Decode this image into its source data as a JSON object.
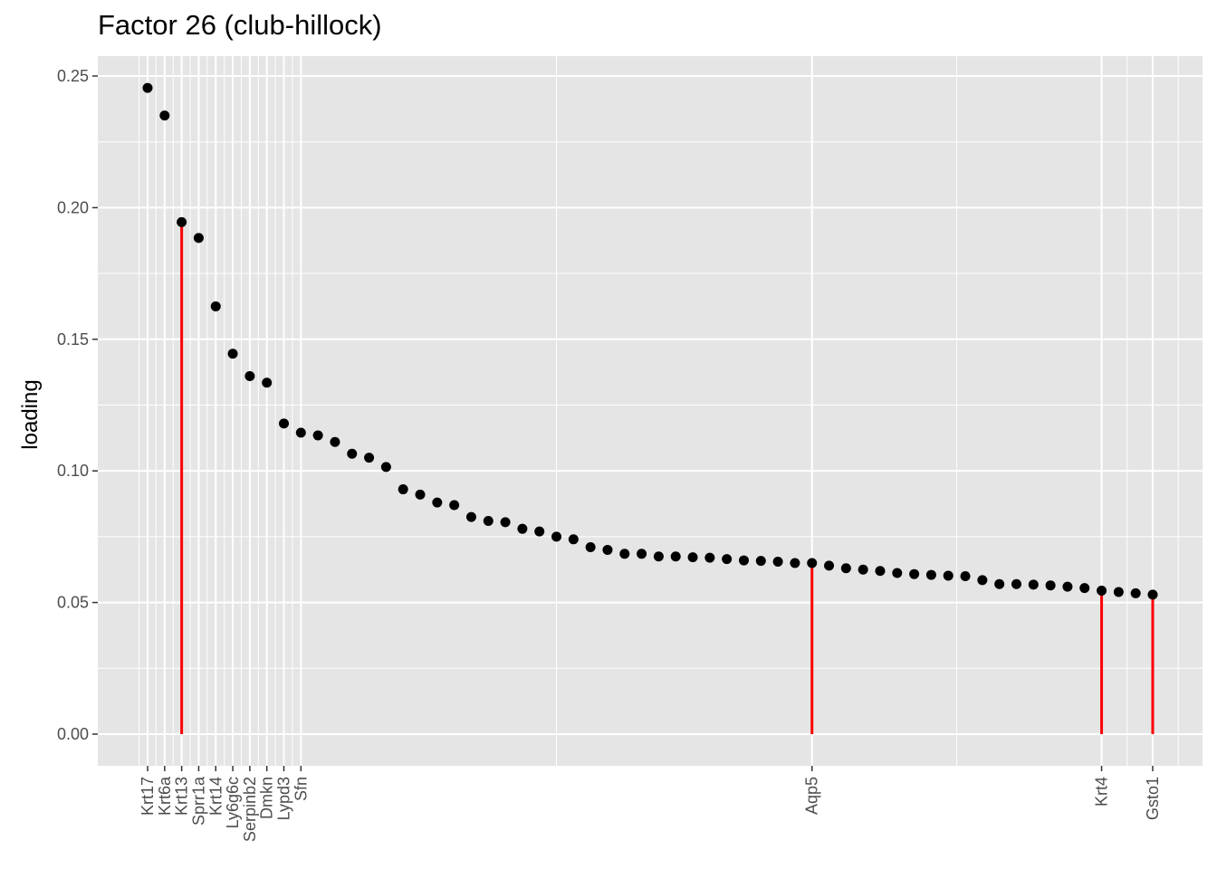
{
  "chart_data": {
    "type": "scatter",
    "title": "Factor 26 (club-hillock)",
    "xlabel": "",
    "ylabel": "loading",
    "ylim": [
      -0.012,
      0.26
    ],
    "yticks": [
      0.0,
      0.05,
      0.1,
      0.15,
      0.2,
      0.25
    ],
    "ytick_labels": [
      "0.00",
      "0.05",
      "0.10",
      "0.15",
      "0.20",
      "0.25"
    ],
    "grid": true,
    "point_color": "#000000",
    "segment_color": "#FF0000",
    "panel_background": "#E5E5E5",
    "gridline_color": "#FFFFFF",
    "n_points": 60,
    "values": [
      0.2455,
      0.235,
      0.1945,
      0.1885,
      0.1625,
      0.1445,
      0.136,
      0.1335,
      0.118,
      0.1145,
      0.1135,
      0.111,
      0.1065,
      0.105,
      0.1015,
      0.093,
      0.091,
      0.088,
      0.087,
      0.0825,
      0.081,
      0.0805,
      0.078,
      0.077,
      0.075,
      0.074,
      0.071,
      0.07,
      0.0685,
      0.0685,
      0.0675,
      0.0675,
      0.0672,
      0.067,
      0.0665,
      0.066,
      0.0658,
      0.0655,
      0.065,
      0.065,
      0.064,
      0.063,
      0.0625,
      0.062,
      0.0612,
      0.0608,
      0.0605,
      0.0602,
      0.06,
      0.0585,
      0.057,
      0.057,
      0.0568,
      0.0565,
      0.056,
      0.0555,
      0.0545,
      0.054,
      0.0535,
      0.053
    ],
    "labeled_points": [
      {
        "index": 0,
        "label": "Krt17"
      },
      {
        "index": 1,
        "label": "Krt6a"
      },
      {
        "index": 2,
        "label": "Krt13"
      },
      {
        "index": 3,
        "label": "Sprr1a"
      },
      {
        "index": 4,
        "label": "Krt14"
      },
      {
        "index": 5,
        "label": "Ly6g6c"
      },
      {
        "index": 6,
        "label": "Serpinb2"
      },
      {
        "index": 7,
        "label": "Dmkn"
      },
      {
        "index": 8,
        "label": "Lypd3"
      },
      {
        "index": 9,
        "label": "Sfn"
      },
      {
        "index": 39,
        "label": "Aqp5"
      },
      {
        "index": 56,
        "label": "Krt4"
      },
      {
        "index": 59,
        "label": "Gsto1"
      }
    ],
    "highlighted_indices": [
      2,
      39,
      56,
      59
    ]
  }
}
